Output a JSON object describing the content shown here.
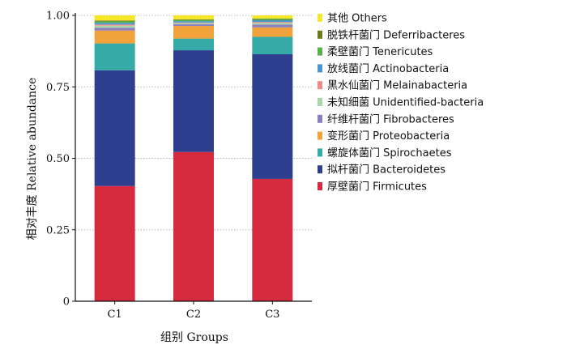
{
  "chart_data": {
    "type": "bar",
    "stacked": true,
    "categories": [
      "C1",
      "C2",
      "C3"
    ],
    "xlabel": "组别 Groups",
    "ylabel": "相对丰度 Relative abundance",
    "ylim": [
      0,
      1.0
    ],
    "yticks": [
      "0",
      "0.25",
      "0.50",
      "0.75",
      "1.00"
    ],
    "grid": "horizontal-dotted",
    "legend_position": "right",
    "series": [
      {
        "name": "厚壁菌门 Firmicutes",
        "color": "#d62a3f",
        "values": [
          0.403,
          0.522,
          0.428
        ]
      },
      {
        "name": "拟杆菌门 Bacteroidetes",
        "color": "#2e3f8f",
        "values": [
          0.405,
          0.356,
          0.436
        ]
      },
      {
        "name": "螺旋体菌门 Spirochaetes",
        "color": "#35aaa6",
        "values": [
          0.094,
          0.041,
          0.061
        ]
      },
      {
        "name": "变形菌门 Proteobacteria",
        "color": "#f2a23a",
        "values": [
          0.045,
          0.044,
          0.033
        ]
      },
      {
        "name": "纤维杆菌门 Fibrobacteres",
        "color": "#8b7fbd",
        "values": [
          0.01,
          0.006,
          0.01
        ]
      },
      {
        "name": "未知细菌 Unidentified-bacteria",
        "color": "#a7d7a5",
        "values": [
          0.007,
          0.004,
          0.006
        ]
      },
      {
        "name": "黑水仙菌门 Melainabacteria",
        "color": "#ef8a8a",
        "values": [
          0.004,
          0.002,
          0.003
        ]
      },
      {
        "name": "放线菌门 Actinobacteria",
        "color": "#4a97cf",
        "values": [
          0.006,
          0.005,
          0.006
        ]
      },
      {
        "name": "柔壁菌门 Tenericutes",
        "color": "#58b04a",
        "values": [
          0.005,
          0.004,
          0.004
        ]
      },
      {
        "name": "脱铁杆菌门 Deferribacteres",
        "color": "#6b7a1f",
        "values": [
          0.003,
          0.002,
          0.002
        ]
      },
      {
        "name": "其他 Others",
        "color": "#f5e829",
        "values": [
          0.018,
          0.014,
          0.011
        ]
      }
    ]
  }
}
